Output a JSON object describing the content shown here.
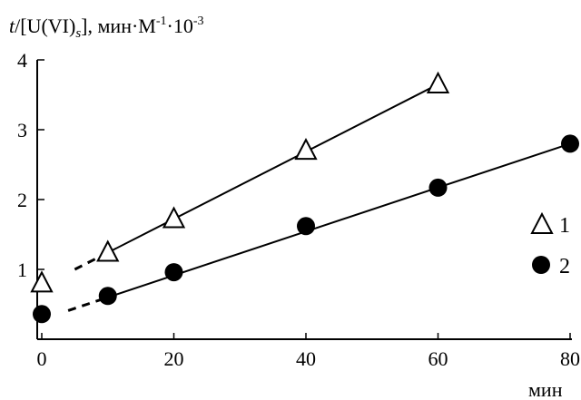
{
  "chart_data": {
    "type": "scatter",
    "title_parts": {
      "t": "t",
      "slash_open": "/[U(VI)",
      "sub_s": "s",
      "close_units": "], мин·",
      "m": "M",
      "exp1": "-1",
      "dot": "·10",
      "exp3": "-3"
    },
    "xlabel": "мин",
    "ylabel": "",
    "xlim": [
      0,
      80
    ],
    "ylim": [
      0,
      4
    ],
    "x_ticks": [
      "0",
      "20",
      "40",
      "60",
      "80"
    ],
    "y_ticks": [
      "1",
      "2",
      "3",
      "4"
    ],
    "grid": false,
    "legend_position": "right",
    "series": [
      {
        "name": "1",
        "marker": "open-triangle",
        "x": [
          0,
          10,
          20,
          40,
          60
        ],
        "y": [
          0.8,
          1.24,
          1.72,
          2.7,
          3.65
        ],
        "fit": {
          "x0": 10,
          "y0": 1.24,
          "x1": 60,
          "y1": 3.65
        },
        "dashed_extrapolation": {
          "x0": 5,
          "y0": 1.0,
          "x1": 10,
          "y1": 1.24
        }
      },
      {
        "name": "2",
        "marker": "filled-circle",
        "x": [
          0,
          10,
          20,
          40,
          60,
          80
        ],
        "y": [
          0.36,
          0.62,
          0.96,
          1.62,
          2.17,
          2.8
        ],
        "fit": {
          "x0": 10,
          "y0": 0.6,
          "x1": 80,
          "y1": 2.8
        },
        "dashed_extrapolation": {
          "x0": 4,
          "y0": 0.41,
          "x1": 10,
          "y1": 0.6
        }
      }
    ],
    "colors": {
      "marker_fill": "#000000",
      "line": "#000000"
    }
  }
}
